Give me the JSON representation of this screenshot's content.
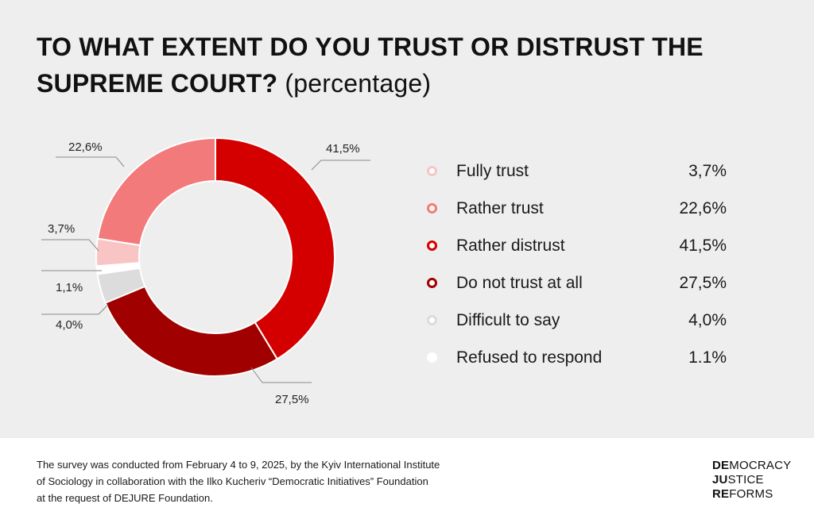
{
  "title": {
    "main": "TO WHAT EXTENT DO YOU TRUST OR DISTRUST THE SUPREME COURT?",
    "unit": "(percentage)"
  },
  "chart_data": {
    "type": "pie",
    "donut": true,
    "slices": [
      {
        "name": "Fully trust",
        "value": 3.7,
        "label": "3,7%",
        "color": "#f9c4c4"
      },
      {
        "name": "Rather trust",
        "value": 22.6,
        "label": "22,6%",
        "color": "#f27a7a"
      },
      {
        "name": "Rather distrust",
        "value": 41.5,
        "label": "41,5%",
        "color": "#d40000"
      },
      {
        "name": "Do not trust at all",
        "value": 27.5,
        "label": "27,5%",
        "color": "#a00000"
      },
      {
        "name": "Difficult to say",
        "value": 4.0,
        "label": "4,0%",
        "color": "#dcdcdc"
      },
      {
        "name": "Refused to respond",
        "value": 1.1,
        "label": "1,1%",
        "color": "#ffffff"
      }
    ],
    "start_category": "Rather distrust",
    "legend_placement": "right"
  },
  "legend": [
    {
      "label": "Fully trust",
      "value": "3,7%",
      "color": "#f9c4c4"
    },
    {
      "label": "Rather trust",
      "value": "22,6%",
      "color": "#f27a7a"
    },
    {
      "label": "Rather distrust",
      "value": "41,5%",
      "color": "#d40000"
    },
    {
      "label": "Do not trust at all",
      "value": "27,5%",
      "color": "#a00000"
    },
    {
      "label": "Difficult to say",
      "value": "4,0%",
      "color": "#dcdcdc"
    },
    {
      "label": "Refused to respond",
      "value": "1.1%",
      "color": "#ffffff"
    }
  ],
  "footnote": {
    "line1": "The survey was conducted from February 4 to 9, 2025, by the Kyiv International Institute",
    "line2": "of Sociology in collaboration with the Ilko Kucheriv “Democratic Initiatives” Foundation",
    "line3": "at the request of DEJURE Foundation."
  },
  "logo": {
    "line1_bold": "DE",
    "line1_rest": "MOCRACY",
    "line2_bold": "JU",
    "line2_rest": "STICE",
    "line3_bold": "RE",
    "line3_rest": "FORMS"
  }
}
